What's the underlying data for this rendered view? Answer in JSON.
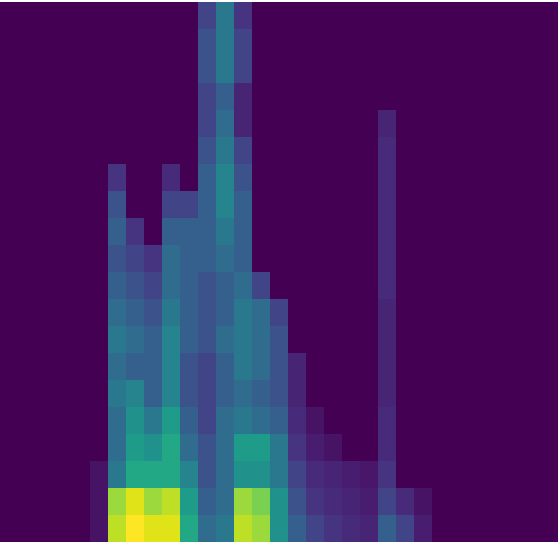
{
  "chart_data": {
    "type": "heatmap",
    "color": "viridis",
    "tick_labels": false,
    "zlim": [
      0,
      1
    ],
    "cells": [
      [
        0,
        0,
        0,
        0,
        0,
        0,
        0,
        0,
        0,
        0,
        0,
        0.2,
        0.4,
        0.15,
        0,
        0,
        0,
        0,
        0,
        0,
        0,
        0,
        0,
        0,
        0,
        0,
        0,
        0,
        0,
        0,
        0
      ],
      [
        0,
        0,
        0,
        0,
        0,
        0,
        0,
        0,
        0,
        0,
        0,
        0.25,
        0.4,
        0.2,
        0,
        0,
        0,
        0,
        0,
        0,
        0,
        0,
        0,
        0,
        0,
        0,
        0,
        0,
        0,
        0,
        0
      ],
      [
        0,
        0,
        0,
        0,
        0,
        0,
        0,
        0,
        0,
        0,
        0,
        0.25,
        0.4,
        0.2,
        0,
        0,
        0,
        0,
        0,
        0,
        0,
        0,
        0,
        0,
        0,
        0,
        0,
        0,
        0,
        0,
        0
      ],
      [
        0,
        0,
        0,
        0,
        0,
        0,
        0,
        0,
        0,
        0,
        0,
        0.2,
        0.3,
        0.1,
        0,
        0,
        0,
        0,
        0,
        0,
        0,
        0,
        0,
        0,
        0,
        0,
        0,
        0,
        0,
        0,
        0
      ],
      [
        0,
        0,
        0,
        0,
        0,
        0,
        0,
        0,
        0,
        0,
        0,
        0.2,
        0.35,
        0.1,
        0,
        0,
        0,
        0,
        0,
        0,
        0,
        0.1,
        0,
        0,
        0,
        0,
        0,
        0,
        0,
        0,
        0
      ],
      [
        0,
        0,
        0,
        0,
        0,
        0,
        0,
        0,
        0,
        0,
        0,
        0.25,
        0.4,
        0.2,
        0,
        0,
        0,
        0,
        0,
        0,
        0,
        0.12,
        0,
        0,
        0,
        0,
        0,
        0,
        0,
        0,
        0
      ],
      [
        0,
        0,
        0,
        0,
        0,
        0,
        0.15,
        0,
        0,
        0.12,
        0,
        0.3,
        0.45,
        0.25,
        0,
        0,
        0,
        0,
        0,
        0,
        0,
        0.12,
        0,
        0,
        0,
        0,
        0,
        0,
        0,
        0,
        0
      ],
      [
        0,
        0,
        0,
        0,
        0,
        0,
        0.25,
        0,
        0,
        0.2,
        0.2,
        0.3,
        0.45,
        0.3,
        0,
        0,
        0,
        0,
        0,
        0,
        0,
        0.12,
        0,
        0,
        0,
        0,
        0,
        0,
        0,
        0,
        0
      ],
      [
        0,
        0,
        0,
        0,
        0,
        0,
        0.3,
        0.15,
        0,
        0.3,
        0.3,
        0.3,
        0.4,
        0.3,
        0,
        0,
        0,
        0,
        0,
        0,
        0,
        0.12,
        0,
        0,
        0,
        0,
        0,
        0,
        0,
        0,
        0
      ],
      [
        0,
        0,
        0,
        0,
        0,
        0,
        0.25,
        0.2,
        0.15,
        0.35,
        0.3,
        0.3,
        0.35,
        0.3,
        0,
        0,
        0,
        0,
        0,
        0,
        0,
        0.12,
        0,
        0,
        0,
        0,
        0,
        0,
        0,
        0,
        0
      ],
      [
        0,
        0,
        0,
        0,
        0,
        0,
        0.3,
        0.25,
        0.2,
        0.35,
        0.3,
        0.25,
        0.3,
        0.35,
        0.2,
        0,
        0,
        0,
        0,
        0,
        0,
        0.12,
        0,
        0,
        0,
        0,
        0,
        0,
        0,
        0,
        0
      ],
      [
        0,
        0,
        0,
        0,
        0,
        0,
        0.35,
        0.3,
        0.25,
        0.4,
        0.3,
        0.25,
        0.3,
        0.4,
        0.35,
        0.2,
        0,
        0,
        0,
        0,
        0,
        0.1,
        0,
        0,
        0,
        0,
        0,
        0,
        0,
        0,
        0
      ],
      [
        0,
        0,
        0,
        0,
        0,
        0,
        0.4,
        0.35,
        0.3,
        0.45,
        0.3,
        0.25,
        0.35,
        0.4,
        0.35,
        0.25,
        0,
        0,
        0,
        0,
        0,
        0.1,
        0,
        0,
        0,
        0,
        0,
        0,
        0,
        0,
        0
      ],
      [
        0,
        0,
        0,
        0,
        0,
        0,
        0.35,
        0.3,
        0.3,
        0.45,
        0.25,
        0.2,
        0.3,
        0.4,
        0.35,
        0.25,
        0.1,
        0,
        0,
        0,
        0,
        0.1,
        0,
        0,
        0,
        0,
        0,
        0,
        0,
        0,
        0
      ],
      [
        0,
        0,
        0,
        0,
        0,
        0,
        0.4,
        0.45,
        0.3,
        0.45,
        0.25,
        0.2,
        0.3,
        0.35,
        0.3,
        0.25,
        0.1,
        0,
        0,
        0,
        0,
        0.1,
        0,
        0,
        0,
        0,
        0,
        0,
        0,
        0,
        0
      ],
      [
        0,
        0,
        0,
        0,
        0,
        0,
        0.35,
        0.5,
        0.4,
        0.55,
        0.3,
        0.2,
        0.35,
        0.4,
        0.35,
        0.3,
        0.12,
        0.05,
        0,
        0,
        0,
        0.12,
        0,
        0,
        0,
        0,
        0,
        0,
        0,
        0,
        0
      ],
      [
        0,
        0,
        0,
        0,
        0,
        0,
        0.35,
        0.55,
        0.5,
        0.6,
        0.35,
        0.25,
        0.35,
        0.55,
        0.55,
        0.4,
        0.15,
        0.08,
        0.05,
        0,
        0,
        0.12,
        0,
        0,
        0,
        0,
        0,
        0,
        0,
        0,
        0
      ],
      [
        0,
        0,
        0,
        0,
        0,
        0.05,
        0.4,
        0.6,
        0.6,
        0.6,
        0.45,
        0.25,
        0.35,
        0.5,
        0.5,
        0.4,
        0.2,
        0.12,
        0.1,
        0.08,
        0.06,
        0.15,
        0,
        0,
        0,
        0,
        0,
        0,
        0,
        0,
        0
      ],
      [
        0,
        0,
        0,
        0,
        0,
        0.05,
        0.85,
        0.95,
        0.85,
        0.9,
        0.55,
        0.3,
        0.35,
        0.85,
        0.8,
        0.5,
        0.25,
        0.15,
        0.12,
        0.1,
        0.08,
        0.2,
        0.12,
        0.05,
        0,
        0,
        0,
        0,
        0,
        0,
        0
      ],
      [
        0,
        0,
        0,
        0,
        0,
        0.05,
        0.9,
        1,
        0.95,
        0.95,
        0.6,
        0.35,
        0.4,
        0.9,
        0.85,
        0.5,
        0.3,
        0.2,
        0.15,
        0.12,
        0.1,
        0.3,
        0.2,
        0.08,
        0,
        0,
        0,
        0,
        0,
        0,
        0
      ]
    ]
  }
}
